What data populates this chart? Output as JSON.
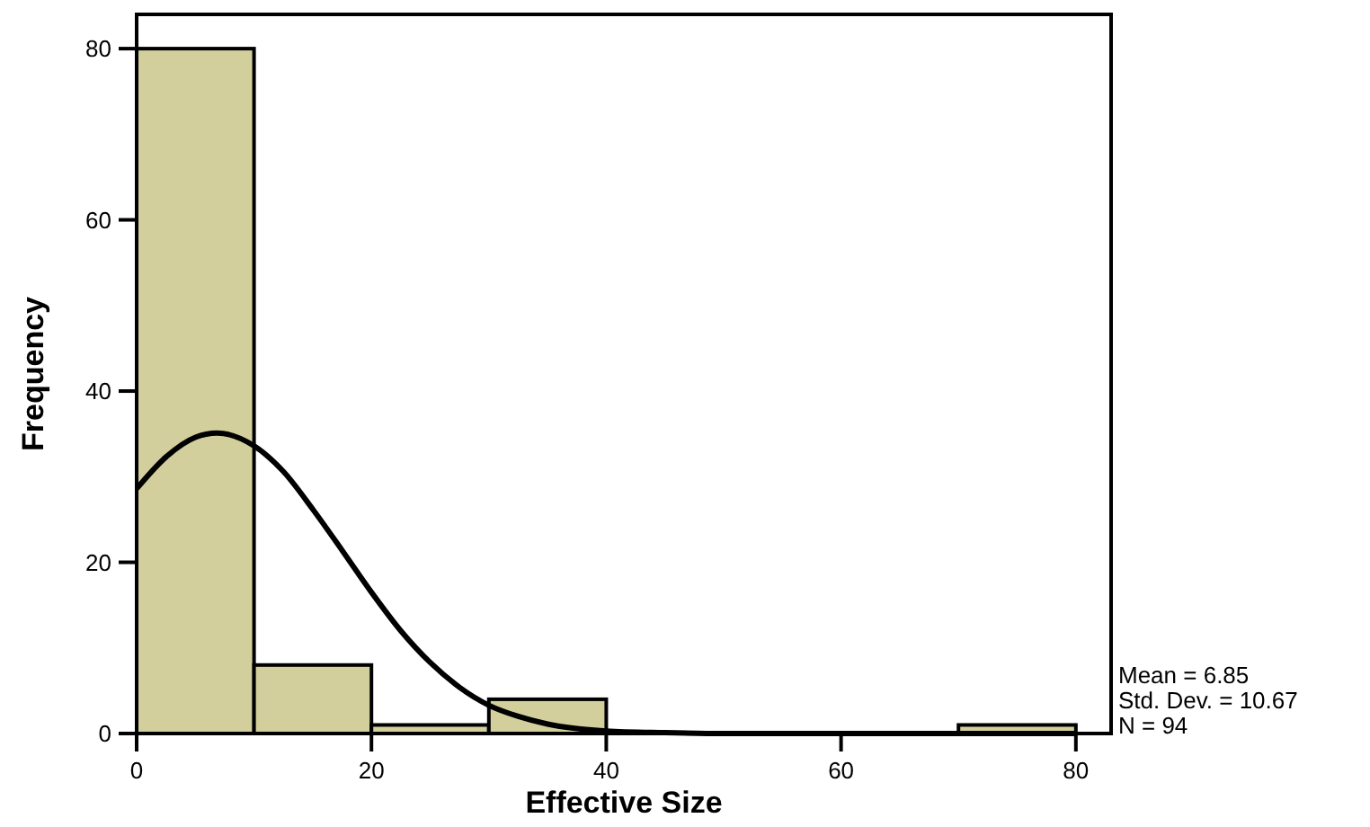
{
  "chart_data": {
    "type": "histogram",
    "xlabel": "Effective Size",
    "ylabel": "Frequency",
    "bins": [
      0,
      10,
      20,
      30,
      40,
      50,
      60,
      70,
      80
    ],
    "values": [
      80,
      8,
      1,
      4,
      0,
      0,
      0,
      1
    ],
    "color": "#d3cf9c",
    "xlim": [
      0,
      83
    ],
    "ylim": [
      0,
      84
    ],
    "xticks": [
      0,
      20,
      40,
      60,
      80
    ],
    "yticks": [
      0,
      20,
      40,
      60,
      80
    ],
    "grid": false,
    "series": [
      {
        "type": "line",
        "color": "#000000",
        "x": [
          0,
          2.5,
          5,
          6.85,
          10,
          12.5,
          15,
          17.5,
          20,
          22.5,
          25,
          27.5,
          30,
          32.5,
          35,
          40,
          45,
          50,
          60,
          80
        ],
        "values": [
          28.6,
          32.3,
          34.6,
          35.1,
          33.6,
          30.6,
          26.2,
          21.4,
          16.5,
          12.0,
          8.3,
          5.4,
          3.3,
          2.0,
          1.1,
          0.3,
          0.1,
          0,
          0,
          0
        ]
      }
    ],
    "annotations": [
      "Mean = 6.85",
      "Std. Dev. = 10.67",
      "N = 94"
    ]
  }
}
